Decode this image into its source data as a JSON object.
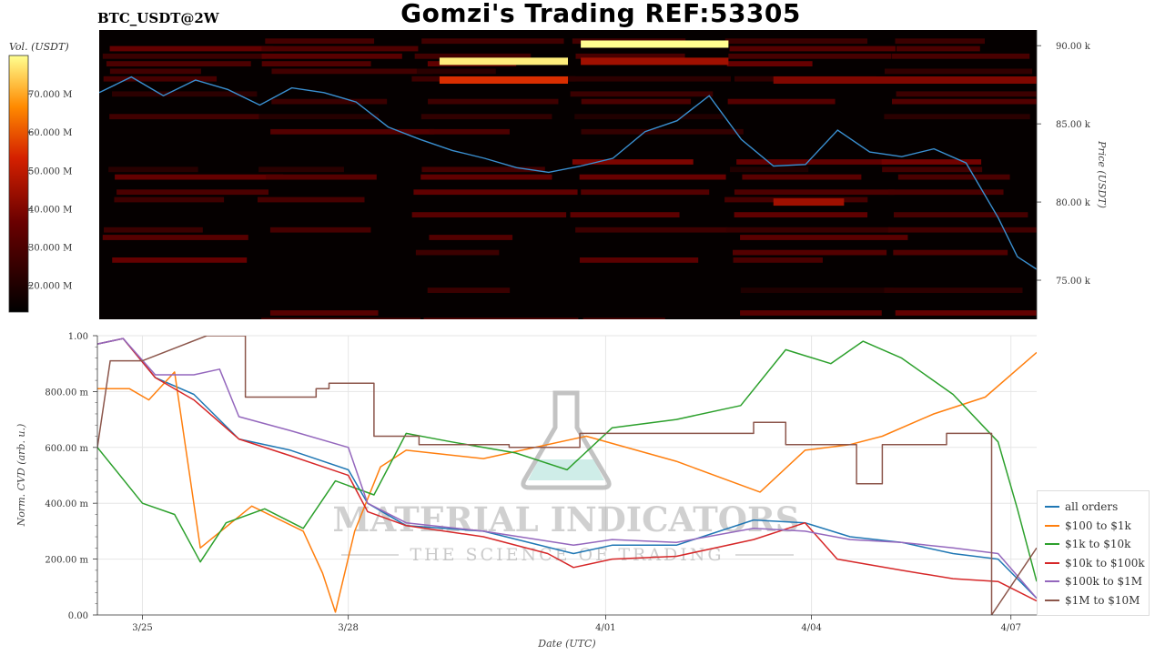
{
  "header": {
    "title": "Gomzi's Trading REF:53305",
    "symbol": "BTC_USDT@2W"
  },
  "colorbar": {
    "title": "Vol. (USDT)",
    "ticks": [
      "70.000 M",
      "60.000 M",
      "50.000 M",
      "40.000 M",
      "30.000 M",
      "20.000 M"
    ],
    "tick_values": [
      70,
      60,
      50,
      40,
      30,
      20
    ],
    "range": [
      13,
      80
    ]
  },
  "watermark": {
    "brand": "MATERIAL INDICATORS",
    "tagline": "THE SCIENCE OF TRADING"
  },
  "chart_data": [
    {
      "type": "heatmap",
      "title": "BTC_USDT@2W",
      "ylabel": "Price (USDT)",
      "y_ticks": [
        "90.00 k",
        "85.00 k",
        "80.00 k",
        "75.00 k"
      ],
      "y_tick_values": [
        90,
        85,
        80,
        75
      ],
      "ylim": [
        72.5,
        91.0
      ],
      "heat_scale_label": "Vol. (USDT)",
      "price_series": {
        "name": "Price",
        "color": "#3a8fd0",
        "x": [
          0,
          0.5,
          1.0,
          1.5,
          2.0,
          2.5,
          3.0,
          3.5,
          4.0,
          4.5,
          5.0,
          5.5,
          6.0,
          6.5,
          7.0,
          7.5,
          8.0,
          8.5,
          9.0,
          9.5,
          10.0,
          10.5,
          11.0,
          11.5,
          12.0,
          12.5,
          13.0,
          13.5,
          14.0,
          14.3,
          14.6
        ],
        "y": [
          87.0,
          88.0,
          86.8,
          87.8,
          87.2,
          86.2,
          87.3,
          87.0,
          86.4,
          84.8,
          84.0,
          83.3,
          82.8,
          82.2,
          81.9,
          82.3,
          82.8,
          84.5,
          85.2,
          86.8,
          84.0,
          82.3,
          82.4,
          84.6,
          83.2,
          82.9,
          83.4,
          82.5,
          79.0,
          76.5,
          75.7
        ]
      },
      "high_volume_bands": [
        {
          "price": 90.1,
          "x_start": 7.5,
          "x_end": 9.8,
          "level": 80
        },
        {
          "price": 89.0,
          "x_start": 5.3,
          "x_end": 7.3,
          "level": 78
        },
        {
          "price": 87.8,
          "x_start": 5.3,
          "x_end": 7.3,
          "level": 55
        },
        {
          "price": 89.0,
          "x_start": 7.5,
          "x_end": 9.8,
          "level": 45
        },
        {
          "price": 87.8,
          "x_start": 10.5,
          "x_end": 14.6,
          "level": 40
        },
        {
          "price": 80.0,
          "x_start": 10.5,
          "x_end": 11.6,
          "level": 45
        }
      ]
    },
    {
      "type": "line",
      "title": "",
      "xlabel": "Date (UTC)",
      "ylabel": "Norm. CVD (arb. u.)",
      "x_ticks": [
        "3/25",
        "3/28",
        "4/01",
        "4/04",
        "4/07"
      ],
      "x_tick_values": [
        0.7,
        3.9,
        7.9,
        11.1,
        14.2
      ],
      "xlim": [
        0,
        14.6
      ],
      "y_ticks": [
        "1.00",
        "800.00 m",
        "600.00 m",
        "400.00 m",
        "200.00 m",
        "0.00"
      ],
      "y_tick_values": [
        1.0,
        0.8,
        0.6,
        0.4,
        0.2,
        0.0
      ],
      "ylim": [
        0,
        1.0
      ],
      "legend_position": "right",
      "series": [
        {
          "name": "all orders",
          "color": "#1f77b4",
          "x": [
            0,
            0.4,
            0.9,
            1.5,
            2.2,
            3.0,
            3.9,
            4.2,
            4.8,
            6.0,
            7.4,
            8.0,
            9.0,
            10.2,
            11.0,
            11.7,
            12.5,
            13.3,
            14.0,
            14.6
          ],
          "y": [
            0.97,
            0.99,
            0.85,
            0.79,
            0.63,
            0.59,
            0.52,
            0.4,
            0.32,
            0.3,
            0.22,
            0.25,
            0.25,
            0.34,
            0.33,
            0.28,
            0.26,
            0.22,
            0.2,
            0.06
          ]
        },
        {
          "name": "$100 to $1k",
          "color": "#ff7f0e",
          "x": [
            0,
            0.5,
            0.8,
            1.2,
            1.6,
            2.4,
            3.2,
            3.5,
            3.7,
            4.0,
            4.4,
            4.8,
            6.0,
            7.6,
            9.0,
            10.3,
            11.0,
            11.7,
            12.2,
            13.0,
            13.8,
            14.4,
            14.6
          ],
          "y": [
            0.81,
            0.81,
            0.77,
            0.87,
            0.24,
            0.39,
            0.3,
            0.15,
            0.01,
            0.3,
            0.53,
            0.59,
            0.56,
            0.64,
            0.55,
            0.44,
            0.59,
            0.61,
            0.64,
            0.72,
            0.78,
            0.9,
            0.94
          ]
        },
        {
          "name": "$1k to $10k",
          "color": "#2ca02c",
          "x": [
            0,
            0.7,
            1.2,
            1.6,
            2.0,
            2.6,
            3.2,
            3.7,
            4.3,
            4.8,
            5.5,
            6.5,
            7.3,
            8.0,
            9.0,
            10.0,
            10.7,
            11.4,
            11.9,
            12.5,
            13.3,
            14.0,
            14.3,
            14.6
          ],
          "y": [
            0.6,
            0.4,
            0.36,
            0.19,
            0.33,
            0.38,
            0.31,
            0.48,
            0.43,
            0.65,
            0.62,
            0.58,
            0.52,
            0.67,
            0.7,
            0.75,
            0.95,
            0.9,
            0.98,
            0.92,
            0.79,
            0.62,
            0.38,
            0.12
          ]
        },
        {
          "name": "$10k to $100k",
          "color": "#d62728",
          "x": [
            0,
            0.4,
            0.9,
            1.5,
            2.2,
            3.0,
            3.9,
            4.2,
            4.8,
            6.0,
            7.0,
            7.4,
            8.0,
            9.0,
            10.2,
            11.0,
            11.5,
            12.5,
            13.3,
            14.0,
            14.6
          ],
          "y": [
            0.97,
            0.99,
            0.85,
            0.77,
            0.63,
            0.57,
            0.5,
            0.37,
            0.32,
            0.28,
            0.22,
            0.17,
            0.2,
            0.21,
            0.27,
            0.33,
            0.2,
            0.16,
            0.13,
            0.12,
            0.05
          ]
        },
        {
          "name": "$100k to $1M",
          "color": "#9467bd",
          "x": [
            0,
            0.4,
            0.9,
            1.5,
            1.9,
            2.2,
            3.0,
            3.9,
            4.2,
            4.8,
            6.0,
            7.4,
            8.0,
            9.0,
            10.2,
            11.0,
            11.7,
            12.5,
            13.3,
            14.0,
            14.6
          ],
          "y": [
            0.97,
            0.99,
            0.86,
            0.86,
            0.88,
            0.71,
            0.66,
            0.6,
            0.4,
            0.33,
            0.3,
            0.25,
            0.27,
            0.26,
            0.31,
            0.3,
            0.27,
            0.26,
            0.24,
            0.22,
            0.06
          ]
        },
        {
          "name": "$1M to $10M",
          "color": "#8c564b",
          "x": [
            0,
            0.2,
            0.7,
            1.7,
            2.3,
            2.3,
            3.4,
            3.4,
            3.6,
            3.6,
            4.3,
            4.3,
            5.0,
            5.0,
            6.4,
            6.4,
            7.5,
            7.5,
            10.2,
            10.2,
            10.7,
            10.7,
            11.8,
            11.8,
            12.2,
            12.2,
            13.2,
            13.2,
            13.9,
            13.9,
            14.6
          ],
          "y": [
            0.6,
            0.91,
            0.91,
            1.0,
            1.0,
            0.78,
            0.78,
            0.81,
            0.81,
            0.83,
            0.83,
            0.64,
            0.64,
            0.61,
            0.61,
            0.6,
            0.6,
            0.65,
            0.65,
            0.69,
            0.69,
            0.61,
            0.61,
            0.47,
            0.47,
            0.61,
            0.61,
            0.65,
            0.65,
            0.0,
            0.24
          ]
        }
      ]
    }
  ]
}
